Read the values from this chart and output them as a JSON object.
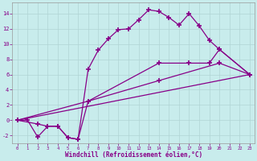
{
  "xlabel": "Windchill (Refroidissement éolien,°C)",
  "background_color": "#c8ecec",
  "grid_color": "#b0d4d4",
  "line_color": "#880088",
  "xlim": [
    -0.5,
    23.5
  ],
  "ylim": [
    -3.0,
    15.5
  ],
  "xticks": [
    0,
    1,
    2,
    3,
    4,
    5,
    6,
    7,
    8,
    9,
    10,
    11,
    12,
    13,
    14,
    15,
    16,
    17,
    18,
    19,
    20,
    21,
    22,
    23
  ],
  "yticks": [
    -2,
    0,
    2,
    4,
    6,
    8,
    10,
    12,
    14
  ],
  "line1_x": [
    0,
    1,
    2,
    3,
    4,
    5,
    6,
    7,
    8,
    9,
    10,
    11,
    12,
    13,
    14,
    15,
    16,
    17,
    18,
    19,
    20,
    23
  ],
  "line1_y": [
    0,
    0,
    -2.2,
    -0.8,
    -0.8,
    -2.3,
    -2.5,
    6.7,
    9.2,
    10.7,
    11.9,
    12.0,
    13.2,
    14.5,
    14.3,
    13.5,
    12.5,
    14.0,
    12.4,
    10.5,
    9.3,
    6.0
  ],
  "line2_x": [
    0,
    2,
    3,
    4,
    5,
    6,
    7,
    14,
    17,
    19,
    20,
    23
  ],
  "line2_y": [
    0,
    -0.5,
    -0.8,
    -0.8,
    -2.3,
    -2.5,
    2.5,
    7.5,
    7.5,
    7.5,
    9.3,
    6.0
  ],
  "line3_x": [
    0,
    7,
    14,
    20,
    23
  ],
  "line3_y": [
    0,
    2.5,
    5.2,
    7.5,
    6.0
  ],
  "line4_x": [
    0,
    23
  ],
  "line4_y": [
    0,
    6.0
  ]
}
